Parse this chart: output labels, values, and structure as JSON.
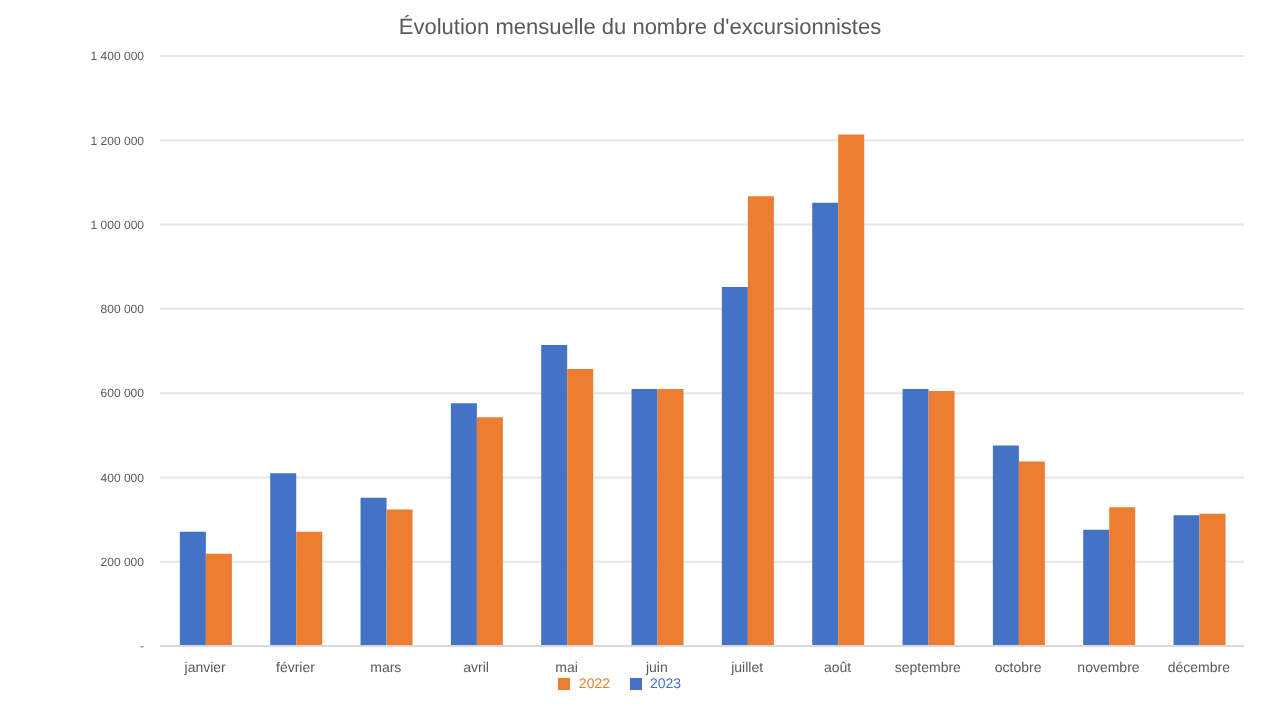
{
  "chart_data": {
    "type": "bar",
    "title": "Évolution mensuelle du nombre d'excursionnistes",
    "categories": [
      "janvier",
      "février",
      "mars",
      "avril",
      "mai",
      "juin",
      "juillet",
      "août",
      "septembre",
      "octobre",
      "novembre",
      "décembre"
    ],
    "series": [
      {
        "name": "2023",
        "color": "#4472c4",
        "values": [
          271000,
          410000,
          352000,
          576000,
          714000,
          610000,
          852000,
          1052000,
          610000,
          476000,
          276000,
          310000
        ]
      },
      {
        "name": "2022",
        "color": "#ed7d31",
        "values": [
          219000,
          271000,
          324000,
          543000,
          657000,
          610000,
          1067000,
          1214000,
          605000,
          438000,
          329000,
          314000
        ]
      }
    ],
    "ylim": [
      0,
      1400000
    ],
    "yticks": [
      {
        "value": 0,
        "label": "-"
      },
      {
        "value": 200000,
        "label": "200 000"
      },
      {
        "value": 400000,
        "label": "400 000"
      },
      {
        "value": 600000,
        "label": "600 000"
      },
      {
        "value": 800000,
        "label": "800 000"
      },
      {
        "value": 1000000,
        "label": "1 000 000"
      },
      {
        "value": 1200000,
        "label": "1 200 000"
      },
      {
        "value": 1400000,
        "label": "1 400 000"
      }
    ],
    "grid": "y",
    "legend": "bottom"
  }
}
